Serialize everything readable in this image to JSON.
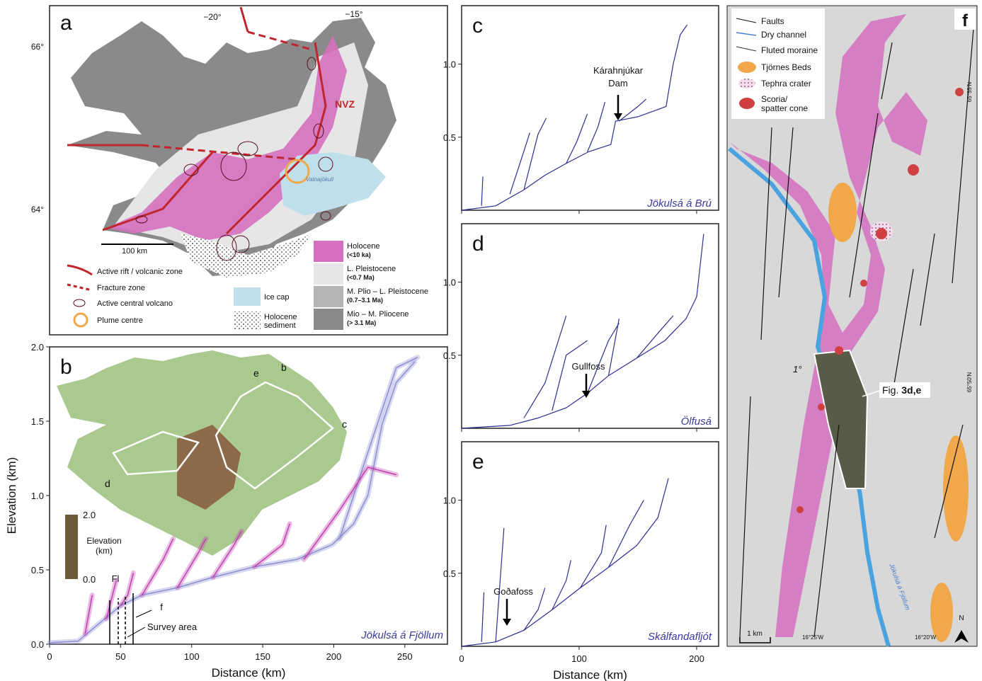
{
  "panel_a": {
    "label": "a",
    "lon_labels": [
      "−20°",
      "−15°"
    ],
    "lat_labels": [
      "66°",
      "64°"
    ],
    "zone_label": "NVZ",
    "ice_cap_name": "Vatnajökull",
    "scale_bar": "100 km",
    "legend": {
      "rift": "Active rift / volcanic zone",
      "fracture": "Fracture zone",
      "volcano": "Active central volcano",
      "plume": "Plume centre",
      "ice": "Ice cap",
      "sediment": [
        "Holocene",
        "sediment"
      ],
      "units": [
        {
          "name": "Holocene",
          "age": "(<10 ka)"
        },
        {
          "name": "L. Pleistocene",
          "age": "(<0.7 Ma)"
        },
        {
          "name": "M. Plio – L. Pleistocene",
          "age": "(0.7–3.1 Ma)"
        },
        {
          "name": "Mio – M. Pliocene",
          "age": "(> 3.1 Ma)"
        }
      ]
    }
  },
  "panel_f": {
    "label": "f",
    "legend": {
      "faults": "Faults",
      "channel": "Dry channel",
      "moraine": "Fluted moraine",
      "tjornes": "Tjörnes Beds",
      "tephra": "Tephra crater",
      "scoria": [
        "Scoria/",
        "spatter cone"
      ]
    },
    "lat_labels": [
      "65°55'N",
      "65°50'N"
    ],
    "lon_labels": [
      "16°25'W",
      "16°20'W"
    ],
    "scale_bar": "1 km",
    "north": "N",
    "callout": {
      "prefix": "Fig. ",
      "bold": "3d,e"
    },
    "tilt": "1°",
    "river": "Jökulsá á Fjöllum"
  },
  "chart_data": [
    {
      "type": "line",
      "panel": "b",
      "xlabel": "Distance (km)",
      "ylabel": "Elevation (km)",
      "xlim": [
        0,
        280
      ],
      "ylim": [
        0,
        2.0
      ],
      "xticks": [
        0,
        50,
        100,
        150,
        200,
        250
      ],
      "yticks": [
        {
          "value": 0,
          "label": "0.0"
        },
        {
          "value": 0.5,
          "label": "0.5"
        },
        {
          "value": 1,
          "label": "1.0"
        },
        {
          "value": 1.5,
          "label": "1.5"
        },
        {
          "value": 2,
          "label": "2.0"
        }
      ],
      "annotations": [
        "Fl",
        "f",
        "Survey area",
        "Jökulsá á Fjöllum"
      ],
      "inset_labels": [
        "b",
        "c",
        "d",
        "e"
      ],
      "colorbar": {
        "label": [
          "Elevation",
          "(km)"
        ],
        "ticks": [
          {
            "value": 2,
            "label": "2.0"
          },
          {
            "value": 0,
            "label": "0.0"
          }
        ]
      },
      "series": [
        {
          "color": "#8c8fd0",
          "x": [
            0,
            20,
            35,
            50,
            65,
            90,
            115,
            144,
            174,
            199,
            214,
            224,
            234,
            244,
            257
          ],
          "y": [
            0.01,
            0.02,
            0.14,
            0.26,
            0.33,
            0.38,
            0.45,
            0.52,
            0.57,
            0.67,
            0.81,
            1.0,
            1.48,
            1.76,
            1.9
          ]
        },
        {
          "color": "#8c8fd0",
          "x": [
            204,
            224,
            244,
            259
          ],
          "y": [
            0.71,
            1.29,
            1.86,
            1.93
          ]
        },
        {
          "color": "#c040b0",
          "x": [
            25,
            30
          ],
          "y": [
            0.07,
            0.33
          ]
        },
        {
          "color": "#c040b0",
          "x": [
            40,
            47
          ],
          "y": [
            0.17,
            0.43
          ]
        },
        {
          "color": "#c040b0",
          "x": [
            50,
            55,
            59
          ],
          "y": [
            0.26,
            0.33,
            0.48
          ]
        },
        {
          "color": "#c040b0",
          "x": [
            65,
            80,
            87
          ],
          "y": [
            0.33,
            0.57,
            0.71
          ]
        },
        {
          "color": "#c040b0",
          "x": [
            90,
            105,
            110
          ],
          "y": [
            0.38,
            0.62,
            0.71
          ]
        },
        {
          "color": "#c040b0",
          "x": [
            115,
            130,
            135
          ],
          "y": [
            0.45,
            0.67,
            0.76
          ]
        },
        {
          "color": "#c040b0",
          "x": [
            144,
            164,
            169
          ],
          "y": [
            0.52,
            0.67,
            0.81
          ]
        },
        {
          "color": "#c040b0",
          "x": [
            179,
            204,
            224,
            244
          ],
          "y": [
            0.57,
            0.9,
            1.19,
            1.14
          ]
        }
      ]
    },
    {
      "type": "line",
      "panel": "c",
      "xlim": [
        0,
        218.7
      ],
      "ylim": [
        0,
        1.4
      ],
      "xticks": [
        0,
        100,
        200
      ],
      "yticks": [
        {
          "value": 0.5,
          "label": "0.5"
        },
        {
          "value": 1,
          "label": "1.0"
        }
      ],
      "annotations": [
        "Kárahnjúkar",
        "Dam",
        "Jökulsá á Brú"
      ],
      "series": [
        {
          "color": "#2b2f8f",
          "x": [
            0,
            28.9,
            53,
            71,
            89,
            108,
            127,
            131,
            150,
            174,
            180,
            186,
            192
          ],
          "y": [
            0,
            0.03,
            0.14,
            0.24,
            0.32,
            0.4,
            0.45,
            0.61,
            0.64,
            0.71,
            1.0,
            1.2,
            1.27
          ]
        },
        {
          "color": "#2b2f8f",
          "x": [
            16.9,
            18.1
          ],
          "y": [
            0.03,
            0.23
          ]
        },
        {
          "color": "#2b2f8f",
          "x": [
            41,
            50,
            58
          ],
          "y": [
            0.11,
            0.33,
            0.53
          ]
        },
        {
          "color": "#2b2f8f",
          "x": [
            53,
            65,
            72
          ],
          "y": [
            0.14,
            0.52,
            0.63
          ]
        },
        {
          "color": "#2b2f8f",
          "x": [
            89,
            98,
            107
          ],
          "y": [
            0.32,
            0.47,
            0.66
          ]
        },
        {
          "color": "#2b2f8f",
          "x": [
            107,
            116,
            122
          ],
          "y": [
            0.4,
            0.57,
            0.74
          ]
        },
        {
          "color": "#2b2f8f",
          "x": [
            134,
            150,
            157
          ],
          "y": [
            0.61,
            0.71,
            0.76
          ]
        }
      ]
    },
    {
      "type": "line",
      "panel": "d",
      "xlim": [
        0,
        218.7
      ],
      "ylim": [
        0,
        1.4
      ],
      "xticks": [
        0,
        100,
        200
      ],
      "yticks": [
        {
          "value": 0.5,
          "label": "0.5"
        },
        {
          "value": 1,
          "label": "1.0"
        }
      ],
      "annotations": [
        "Gullfoss",
        "Ölfusá"
      ],
      "series": [
        {
          "color": "#2b2f8f",
          "x": [
            0,
            41,
            65,
            89,
            107,
            125,
            149,
            173,
            191,
            200,
            206
          ],
          "y": [
            0,
            0.02,
            0.07,
            0.14,
            0.24,
            0.36,
            0.48,
            0.6,
            0.75,
            0.9,
            1.33
          ]
        },
        {
          "color": "#2b2f8f",
          "x": [
            53,
            71,
            89
          ],
          "y": [
            0.07,
            0.31,
            0.77
          ]
        },
        {
          "color": "#2b2f8f",
          "x": [
            77,
            89,
            107
          ],
          "y": [
            0.12,
            0.5,
            0.6
          ]
        },
        {
          "color": "#2b2f8f",
          "x": [
            107,
            125,
            134
          ],
          "y": [
            0.24,
            0.6,
            0.72
          ]
        },
        {
          "color": "#2b2f8f",
          "x": [
            125,
            134
          ],
          "y": [
            0.36,
            0.75
          ]
        },
        {
          "color": "#2b2f8f",
          "x": [
            149,
            167,
            180
          ],
          "y": [
            0.48,
            0.65,
            0.77
          ]
        }
      ]
    },
    {
      "type": "line",
      "panel": "e",
      "xlabel": "Distance (km)",
      "xlim": [
        0,
        218.7
      ],
      "ylim": [
        0,
        1.4
      ],
      "xticks": [
        0,
        100,
        200
      ],
      "yticks": [
        {
          "value": 0.5,
          "label": "0.5"
        },
        {
          "value": 1,
          "label": "1.0"
        }
      ],
      "annotations": [
        "Goðafoss",
        "Skálfandafljót"
      ],
      "series": [
        {
          "color": "#2b2f8f",
          "x": [
            0,
            29,
            53,
            77,
            101,
            125,
            149,
            167,
            176
          ],
          "y": [
            0,
            0.03,
            0.11,
            0.25,
            0.4,
            0.54,
            0.69,
            0.88,
            1.15
          ]
        },
        {
          "color": "#2b2f8f",
          "x": [
            17,
            19
          ],
          "y": [
            0.03,
            0.37
          ]
        },
        {
          "color": "#2b2f8f",
          "x": [
            29,
            36
          ],
          "y": [
            0.03,
            0.81
          ]
        },
        {
          "color": "#2b2f8f",
          "x": [
            53,
            65,
            71
          ],
          "y": [
            0.11,
            0.25,
            0.4
          ]
        },
        {
          "color": "#2b2f8f",
          "x": [
            77,
            89,
            93
          ],
          "y": [
            0.25,
            0.45,
            0.59
          ]
        },
        {
          "color": "#2b2f8f",
          "x": [
            101,
            119,
            123
          ],
          "y": [
            0.4,
            0.64,
            0.83
          ]
        },
        {
          "color": "#2b2f8f",
          "x": [
            125,
            143,
            155
          ],
          "y": [
            0.54,
            0.83,
            1.0
          ]
        }
      ]
    }
  ]
}
